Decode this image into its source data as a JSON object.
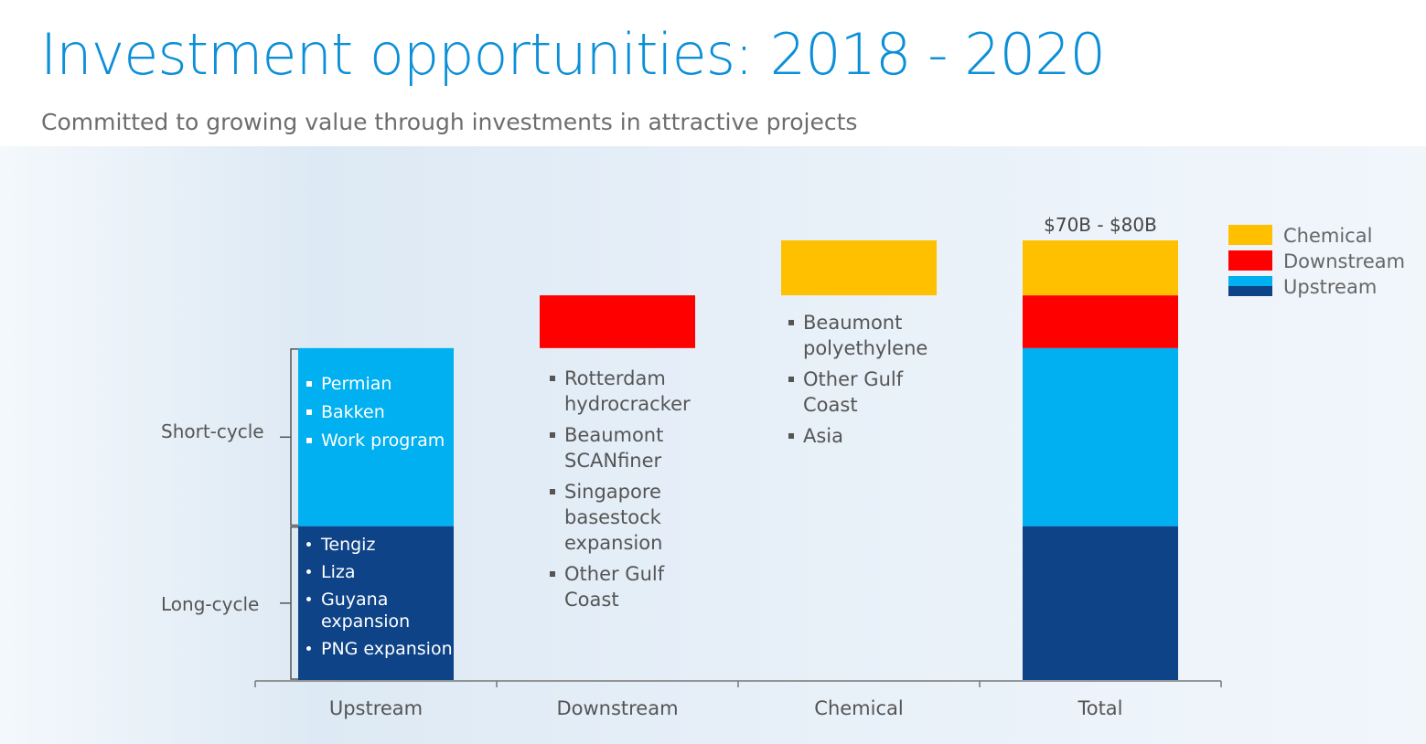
{
  "header": {
    "title": "Investment opportunities:  2018 - 2020",
    "subtitle": "Committed to growing value through investments in attractive projects"
  },
  "colors": {
    "chemical": "#ffc000",
    "downstream": "#ff0000",
    "upstream_short": "#00b0f0",
    "upstream_long": "#0e4388",
    "title": "#0b8fd8"
  },
  "chart_data": {
    "type": "bar",
    "subtype": "waterfall",
    "categories": [
      "Upstream",
      "Downstream",
      "Chemical",
      "Total"
    ],
    "series": [
      {
        "name": "Upstream",
        "segments": [
          {
            "category": "Upstream",
            "part": "Long-cycle",
            "start": 0,
            "end": 0.35
          },
          {
            "category": "Upstream",
            "part": "Short-cycle",
            "start": 0.35,
            "end": 0.755
          }
        ]
      },
      {
        "name": "Downstream",
        "segments": [
          {
            "category": "Downstream",
            "start": 0.755,
            "end": 0.875
          }
        ]
      },
      {
        "name": "Chemical",
        "segments": [
          {
            "category": "Chemical",
            "start": 0.875,
            "end": 1.0
          }
        ]
      }
    ],
    "total_segments": [
      {
        "part": "Long-cycle",
        "start": 0,
        "end": 0.35,
        "color": "#0e4388"
      },
      {
        "part": "Short-cycle",
        "start": 0.35,
        "end": 0.755,
        "color": "#00b0f0"
      },
      {
        "part": "Downstream",
        "start": 0.755,
        "end": 0.875,
        "color": "#ff0000"
      },
      {
        "part": "Chemical",
        "start": 0.875,
        "end": 1.0,
        "color": "#ffc000"
      }
    ],
    "total_label": "$70B - $80B",
    "legend": [
      "Chemical",
      "Downstream",
      "Upstream"
    ],
    "legend_placement": "top-right",
    "y_axis": "hidden",
    "grid": false
  },
  "segment_labels": {
    "short_cycle": "Short-cycle",
    "long_cycle": "Long-cycle"
  },
  "upstream_short_items": [
    "Permian",
    "Bakken",
    "Work program"
  ],
  "upstream_long_items": [
    "Tengiz",
    "Liza",
    "Guyana expansion",
    "PNG expansion"
  ],
  "downstream_items": [
    "Rotterdam hydrocracker",
    "Beaumont SCANfiner",
    "Singapore basestock expansion",
    "Other Gulf Coast"
  ],
  "chemical_items": [
    "Beaumont polyethylene",
    "Other Gulf Coast",
    "Asia"
  ]
}
